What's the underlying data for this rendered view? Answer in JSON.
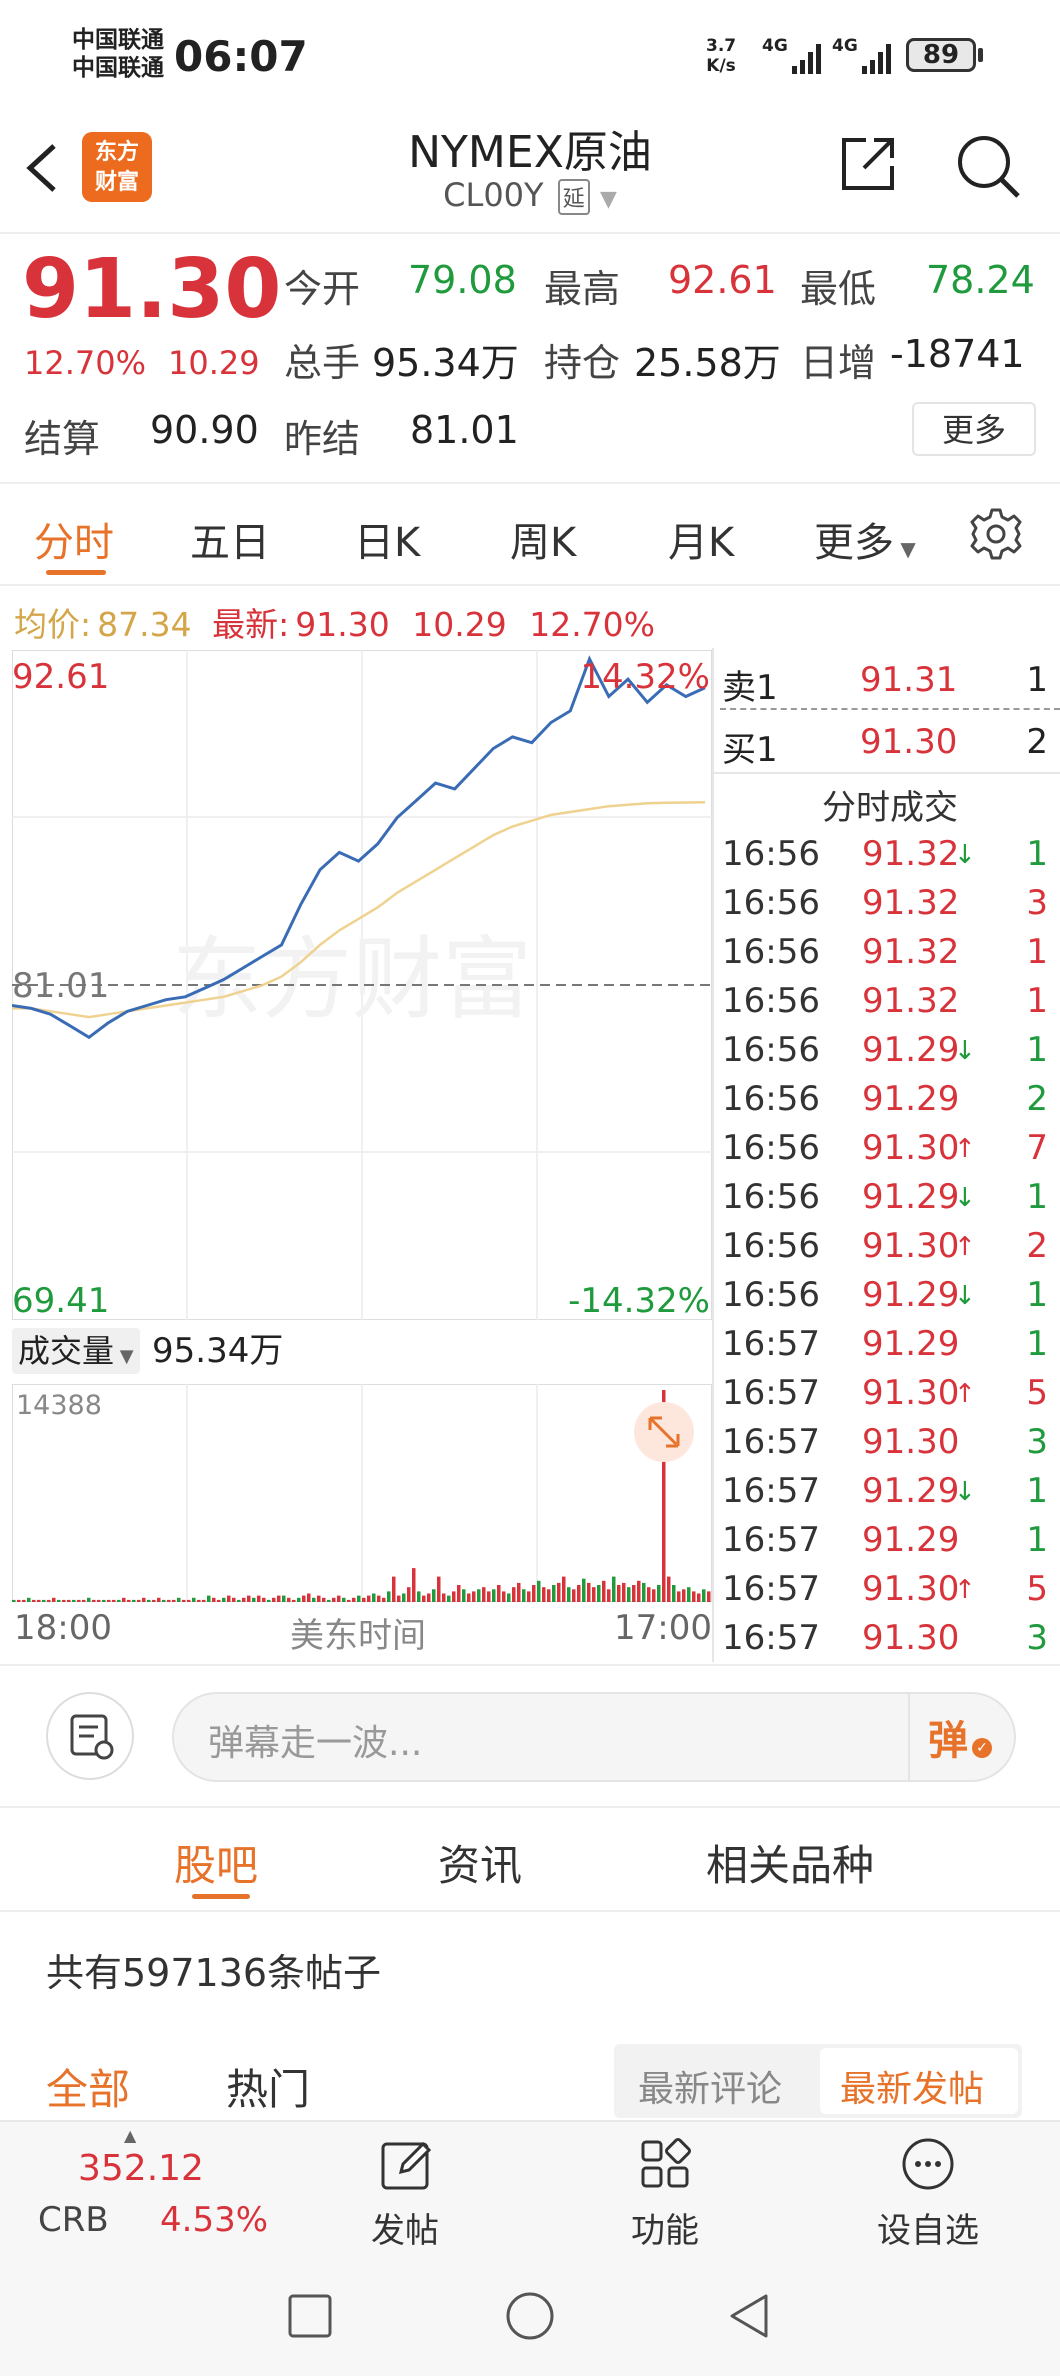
{
  "status_bar": {
    "carrier1": "中国联通",
    "carrier2": "中国联通",
    "time": "06:07",
    "net_speed_top": "3.7",
    "net_speed_bottom": "K/s",
    "signal1": "4G",
    "signal2": "4G",
    "battery": "89"
  },
  "header": {
    "logo_line1": "东方",
    "logo_line2": "财富",
    "title": "NYMEX原油",
    "code": "CL00Y",
    "delay_badge": "延"
  },
  "quote": {
    "price": "91.30",
    "change_pct": "12.70%",
    "change": "10.29",
    "open_label": "今开",
    "open": "79.08",
    "high_label": "最高",
    "high": "92.61",
    "low_label": "最低",
    "low": "78.24",
    "volume_label": "总手",
    "volume": "95.34万",
    "oi_label": "持仓",
    "oi": "25.58万",
    "daily_inc_label": "日增",
    "daily_inc": "-18741",
    "settle_label": "结算",
    "settle": "90.90",
    "prev_settle_label": "昨结",
    "prev_settle": "81.01",
    "more_button": "更多"
  },
  "chart_tabs": [
    "分时",
    "五日",
    "日K",
    "周K",
    "月K",
    "更多"
  ],
  "info_line": {
    "avg_label": "均价:",
    "avg": "87.34",
    "latest_label": "最新:",
    "latest": "91.30",
    "change": "10.29",
    "change_pct": "12.70%"
  },
  "chart_data": {
    "type": "line",
    "y_max_label": "92.61",
    "y_mid_label": "81.01",
    "y_min_label": "69.41",
    "pct_max_label": "14.32%",
    "pct_min_label": "-14.32%",
    "ylim": [
      69.41,
      92.61
    ],
    "series": [
      {
        "values": [
          80.3,
          80.2,
          80.0,
          79.6,
          79.2,
          79.7,
          80.1,
          80.3,
          80.5,
          80.6,
          80.9,
          81.2,
          81.6,
          82.0,
          82.4,
          83.8,
          85.0,
          85.6,
          85.3,
          85.9,
          86.8,
          87.4,
          88.0,
          87.8,
          88.5,
          89.2,
          89.6,
          89.4,
          90.1,
          90.5,
          92.3,
          91.0,
          91.6,
          90.8,
          91.4,
          91.0,
          91.3
        ]
      },
      {
        "values": [
          80.2,
          80.2,
          80.1,
          80.0,
          79.9,
          80.0,
          80.1,
          80.2,
          80.3,
          80.4,
          80.5,
          80.6,
          80.8,
          81.0,
          81.3,
          81.8,
          82.4,
          82.9,
          83.3,
          83.7,
          84.2,
          84.6,
          85.0,
          85.4,
          85.8,
          86.2,
          86.5,
          86.7,
          86.9,
          87.0,
          87.1,
          87.2,
          87.25,
          87.3,
          87.32,
          87.33,
          87.34
        ]
      }
    ],
    "volume_label": "成交量",
    "volume_value": "95.34万",
    "volume_max": "14388",
    "volume_bars": [
      1,
      1,
      1,
      2,
      1,
      1,
      1,
      1,
      2,
      1,
      1,
      1,
      1,
      1,
      1,
      2,
      1,
      1,
      1,
      1,
      1,
      1,
      2,
      1,
      1,
      1,
      2,
      1,
      1,
      2,
      1,
      1,
      1,
      2,
      1,
      1,
      2,
      1,
      1,
      3,
      2,
      1,
      2,
      3,
      2,
      1,
      2,
      3,
      2,
      3,
      2,
      1,
      2,
      3,
      3,
      2,
      1,
      2,
      3,
      4,
      2,
      3,
      2,
      1,
      2,
      3,
      2,
      1,
      2,
      3,
      2,
      3,
      4,
      3,
      2,
      5,
      12,
      3,
      4,
      7,
      16,
      5,
      3,
      4,
      6,
      12,
      4,
      3,
      5,
      8,
      6,
      4,
      5,
      6,
      7,
      5,
      6,
      8,
      5,
      4,
      7,
      9,
      6,
      5,
      8,
      10,
      7,
      6,
      8,
      9,
      12,
      7,
      6,
      8,
      11,
      9,
      7,
      8,
      10,
      6,
      12,
      8,
      9,
      7,
      8,
      10,
      9,
      7,
      6,
      8,
      100,
      12,
      8,
      5,
      6,
      7,
      5,
      4,
      6,
      5
    ],
    "x_start": "18:00",
    "x_mid": "美东时间",
    "x_end": "17:00"
  },
  "order_book": {
    "sell_label": "卖1",
    "sell_price": "91.31",
    "sell_qty": "1",
    "buy_label": "买1",
    "buy_price": "91.30",
    "buy_qty": "2",
    "trades_title": "分时成交"
  },
  "trades": [
    {
      "time": "16:56",
      "price": "91.32",
      "arrow": "↓",
      "qty": "1",
      "qty_color": "green"
    },
    {
      "time": "16:56",
      "price": "91.32",
      "arrow": "",
      "qty": "3",
      "qty_color": "red"
    },
    {
      "time": "16:56",
      "price": "91.32",
      "arrow": "",
      "qty": "1",
      "qty_color": "red"
    },
    {
      "time": "16:56",
      "price": "91.32",
      "arrow": "",
      "qty": "1",
      "qty_color": "red"
    },
    {
      "time": "16:56",
      "price": "91.29",
      "arrow": "↓",
      "qty": "1",
      "qty_color": "green"
    },
    {
      "time": "16:56",
      "price": "91.29",
      "arrow": "",
      "qty": "2",
      "qty_color": "green"
    },
    {
      "time": "16:56",
      "price": "91.30",
      "arrow": "↑",
      "qty": "7",
      "qty_color": "red"
    },
    {
      "time": "16:56",
      "price": "91.29",
      "arrow": "↓",
      "qty": "1",
      "qty_color": "green"
    },
    {
      "time": "16:56",
      "price": "91.30",
      "arrow": "↑",
      "qty": "2",
      "qty_color": "red"
    },
    {
      "time": "16:56",
      "price": "91.29",
      "arrow": "↓",
      "qty": "1",
      "qty_color": "green"
    },
    {
      "time": "16:57",
      "price": "91.29",
      "arrow": "",
      "qty": "1",
      "qty_color": "green"
    },
    {
      "time": "16:57",
      "price": "91.30",
      "arrow": "↑",
      "qty": "5",
      "qty_color": "red"
    },
    {
      "time": "16:57",
      "price": "91.30",
      "arrow": "",
      "qty": "3",
      "qty_color": "green"
    },
    {
      "time": "16:57",
      "price": "91.29",
      "arrow": "↓",
      "qty": "1",
      "qty_color": "green"
    },
    {
      "time": "16:57",
      "price": "91.29",
      "arrow": "",
      "qty": "1",
      "qty_color": "green"
    },
    {
      "time": "16:57",
      "price": "91.30",
      "arrow": "↑",
      "qty": "5",
      "qty_color": "red"
    },
    {
      "time": "16:57",
      "price": "91.30",
      "arrow": "",
      "qty": "3",
      "qty_color": "green"
    }
  ],
  "danmaku": {
    "placeholder": "弹幕走一波...",
    "send_glyph": "弹"
  },
  "section_tabs": [
    "股吧",
    "资讯",
    "相关品种"
  ],
  "posts": {
    "count_text": "共有597136条帖子",
    "filter_all": "全部",
    "filter_hot": "热门",
    "sort_comment": "最新评论",
    "sort_post": "最新发帖"
  },
  "bottom_bar": {
    "crb_value": "352.12",
    "crb_label": "CRB",
    "crb_pct": "4.53%",
    "post": "发帖",
    "func": "功能",
    "watch": "设自选"
  },
  "colors": {
    "accent": "#e7722a",
    "up": "#d8333a",
    "down": "#1f9a3c",
    "line": "#3a6cb5",
    "avg_line": "#efd28f"
  }
}
